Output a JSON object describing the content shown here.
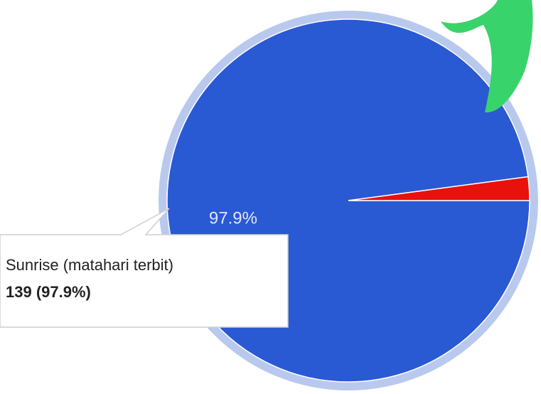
{
  "chart_data": {
    "type": "pie",
    "categories": [
      "Sunrise (matahari terbit)",
      null
    ],
    "values": [
      97.9,
      2.1
    ],
    "value_labels": [
      "97.9%",
      null
    ],
    "colors": [
      "#2a59d4",
      "#e8110b"
    ],
    "start_angle": 0,
    "tooltip": {
      "category": 0,
      "text": "139 (97.9%)"
    }
  }
}
